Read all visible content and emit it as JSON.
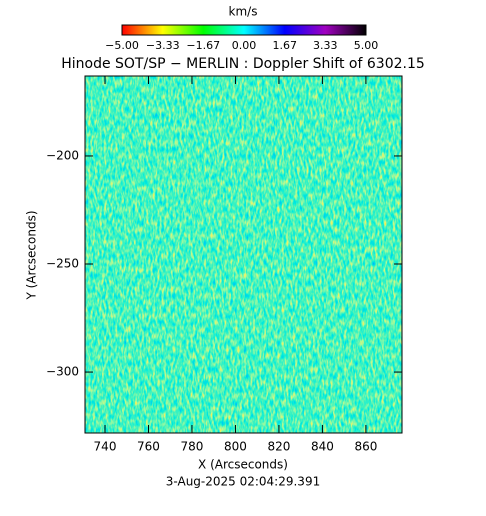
{
  "chart_data": {
    "type": "image",
    "title": "Hinode SOT/SP − MERLIN : Doppler Shift of 6302.15",
    "xlabel": "X (Arcseconds)",
    "ylabel": "Y (Arcseconds)",
    "footer": "3-Aug-2025 02:04:29.391",
    "xlim": [
      730.8,
      876.6
    ],
    "ylim": [
      -328.2,
      -163
    ],
    "xticks": [
      740,
      760,
      780,
      800,
      820,
      840,
      860
    ],
    "yticks": [
      {
        "value": -200,
        "label": "−200"
      },
      {
        "value": -250,
        "label": "−250"
      },
      {
        "value": -300,
        "label": "−300"
      }
    ],
    "colorbar": {
      "label": "km/s",
      "lim": [
        -5,
        5
      ],
      "colors": [
        "#ff0000",
        "#ffff00",
        "#00ff00",
        "#00ffff",
        "#0000ff",
        "#a000c0",
        "#000000"
      ],
      "ticks": [
        {
          "value": -5,
          "label": "−5.00"
        },
        {
          "value": -3.33,
          "label": "−3.33"
        },
        {
          "value": -1.67,
          "label": "−1.67"
        },
        {
          "value": 0,
          "label": "0.00"
        },
        {
          "value": 1.67,
          "label": "1.67"
        },
        {
          "value": 3.33,
          "label": "3.33"
        },
        {
          "value": 5,
          "label": "5.00"
        }
      ]
    }
  }
}
